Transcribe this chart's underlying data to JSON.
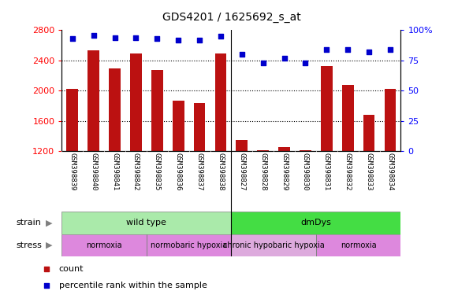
{
  "title": "GDS4201 / 1625692_s_at",
  "samples": [
    "GSM398839",
    "GSM398840",
    "GSM398841",
    "GSM398842",
    "GSM398835",
    "GSM398836",
    "GSM398837",
    "GSM398838",
    "GSM398827",
    "GSM398828",
    "GSM398829",
    "GSM398830",
    "GSM398831",
    "GSM398832",
    "GSM398833",
    "GSM398834"
  ],
  "counts": [
    2020,
    2530,
    2290,
    2490,
    2270,
    1870,
    1840,
    2490,
    1350,
    1210,
    1255,
    1215,
    2320,
    2080,
    1680,
    2020
  ],
  "percentiles": [
    93,
    96,
    94,
    94,
    93,
    92,
    92,
    95,
    80,
    73,
    77,
    73,
    84,
    84,
    82,
    84
  ],
  "ylim_left": [
    1200,
    2800
  ],
  "ylim_right": [
    0,
    100
  ],
  "yticks_left": [
    1200,
    1600,
    2000,
    2400,
    2800
  ],
  "yticks_right": [
    0,
    25,
    50,
    75,
    100
  ],
  "bar_color": "#bb1111",
  "scatter_color": "#0000cc",
  "bg_color": "#ffffff",
  "tick_bg_color": "#cccccc",
  "strain_labels": [
    {
      "text": "wild type",
      "start": 0,
      "end": 8,
      "color": "#aaeaaa"
    },
    {
      "text": "dmDys",
      "start": 8,
      "end": 16,
      "color": "#44dd44"
    }
  ],
  "stress_labels": [
    {
      "text": "normoxia",
      "start": 0,
      "end": 4,
      "color": "#dd88dd"
    },
    {
      "text": "normobaric hypoxia",
      "start": 4,
      "end": 8,
      "color": "#dd88dd"
    },
    {
      "text": "chronic hypobaric hypoxia",
      "start": 8,
      "end": 12,
      "color": "#ddaadd"
    },
    {
      "text": "normoxia",
      "start": 12,
      "end": 16,
      "color": "#dd88dd"
    }
  ],
  "legend_items": [
    {
      "label": "count",
      "color": "#bb1111"
    },
    {
      "label": "percentile rank within the sample",
      "color": "#0000cc"
    }
  ],
  "fig_width": 5.81,
  "fig_height": 3.84,
  "dpi": 100
}
